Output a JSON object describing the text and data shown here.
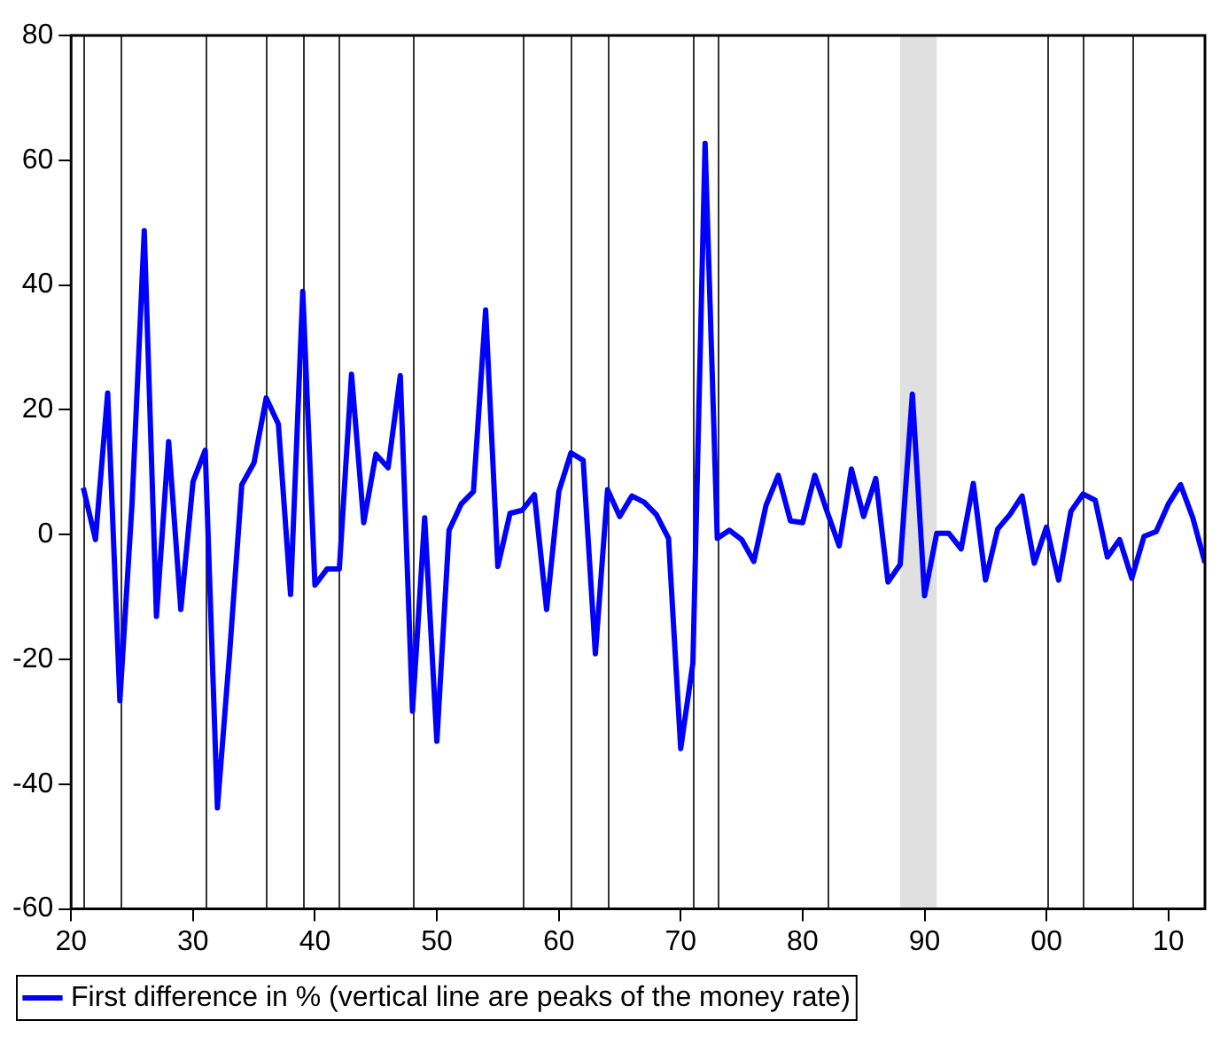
{
  "chart_data": {
    "type": "line",
    "x": [
      1921,
      1922,
      1923,
      1924,
      1925,
      1926,
      1927,
      1928,
      1929,
      1930,
      1931,
      1932,
      1933,
      1934,
      1935,
      1936,
      1937,
      1938,
      1939,
      1940,
      1941,
      1942,
      1943,
      1944,
      1945,
      1946,
      1947,
      1948,
      1949,
      1950,
      1951,
      1952,
      1953,
      1954,
      1955,
      1956,
      1957,
      1958,
      1959,
      1960,
      1961,
      1962,
      1963,
      1964,
      1965,
      1966,
      1967,
      1968,
      1969,
      1970,
      1971,
      1972,
      1973,
      1974,
      1975,
      1976,
      1977,
      1978,
      1979,
      1980,
      1981,
      1982,
      1983,
      1984,
      1985,
      1986,
      1987,
      1988,
      1989,
      1990,
      1991,
      1992,
      1993,
      1994,
      1995,
      1996,
      1997,
      1998,
      1999,
      2000,
      2001,
      2002,
      2003,
      2004,
      2005,
      2006,
      2007,
      2008,
      2009,
      2010,
      2011,
      2012,
      2013
    ],
    "series": [
      {
        "name": "First difference in % (vertical line are peaks of the money rate)",
        "color": "#0000ff",
        "values": [
          7.5,
          -0.8,
          22.7,
          -26.6,
          5,
          48.7,
          -13.1,
          14.9,
          -12,
          8.5,
          13.5,
          -43.8,
          -19,
          8,
          11.5,
          21.9,
          17.7,
          -9.6,
          39,
          -8.1,
          -5.5,
          -5.5,
          25.7,
          1.9,
          12.9,
          10.7,
          25.5,
          -28.3,
          2.7,
          -33.1,
          0.7,
          4.9,
          6.9,
          36,
          -5.1,
          3.4,
          3.9,
          6.4,
          -12,
          6.9,
          13.1,
          11.9,
          -19.1,
          7.2,
          2.9,
          6.2,
          5.2,
          3.2,
          -0.6,
          -34.3,
          -20.6,
          62.7,
          -0.6,
          0.7,
          -0.8,
          -4.3,
          4.7,
          9.5,
          2.2,
          1.9,
          9.5,
          3.7,
          -1.8,
          10.5,
          2.9,
          9,
          -7.6,
          -4.8,
          22.5,
          -9.8,
          0.2,
          0.2,
          -2.3,
          8.2,
          -7.3,
          0.9,
          3.2,
          6.2,
          -4.6,
          1.2,
          -7.3,
          3.7,
          6.5,
          5.5,
          -3.6,
          -0.8,
          -7,
          -0.3,
          0.5,
          4.9,
          8,
          2.7,
          -4.5
        ]
      }
    ],
    "xlim": [
      1920,
      2013
    ],
    "xticks": [
      {
        "value": 1920,
        "label": "20"
      },
      {
        "value": 1930,
        "label": "30"
      },
      {
        "value": 1940,
        "label": "40"
      },
      {
        "value": 1950,
        "label": "50"
      },
      {
        "value": 1960,
        "label": "60"
      },
      {
        "value": 1970,
        "label": "70"
      },
      {
        "value": 1980,
        "label": "80"
      },
      {
        "value": 1990,
        "label": "90"
      },
      {
        "value": 2000,
        "label": "00"
      },
      {
        "value": 2010,
        "label": "10"
      }
    ],
    "ylim": [
      -60,
      80
    ],
    "yticks": [
      -60,
      -40,
      -20,
      0,
      20,
      40,
      60,
      80
    ],
    "ref_lines": [
      {
        "axis": "x",
        "value": 1921,
        "color": "#333333"
      },
      {
        "axis": "x",
        "value": 1924,
        "color": "#333333"
      },
      {
        "axis": "x",
        "value": 1931,
        "color": "#333333"
      },
      {
        "axis": "x",
        "value": 1936,
        "color": "#333333"
      },
      {
        "axis": "x",
        "value": 1939,
        "color": "#333333"
      },
      {
        "axis": "x",
        "value": 1942,
        "color": "#333333"
      },
      {
        "axis": "x",
        "value": 1948,
        "color": "#333333"
      },
      {
        "axis": "x",
        "value": 1957,
        "color": "#333333"
      },
      {
        "axis": "x",
        "value": 1961,
        "color": "#333333"
      },
      {
        "axis": "x",
        "value": 1964,
        "color": "#333333"
      },
      {
        "axis": "x",
        "value": 1971,
        "color": "#333333"
      },
      {
        "axis": "x",
        "value": 1973,
        "color": "#333333"
      },
      {
        "axis": "x",
        "value": 1982,
        "color": "#333333"
      },
      {
        "axis": "x",
        "value": 2000,
        "color": "#333333"
      },
      {
        "axis": "x",
        "value": 2003,
        "color": "#333333"
      },
      {
        "axis": "x",
        "value": 2007,
        "color": "#333333"
      }
    ],
    "bands": [
      {
        "axis": "x",
        "from": 1988,
        "to": 1991,
        "color": "#e0e0e0"
      }
    ],
    "grid": false,
    "legend": "bottom",
    "marker": "none",
    "line_style": "solid"
  }
}
